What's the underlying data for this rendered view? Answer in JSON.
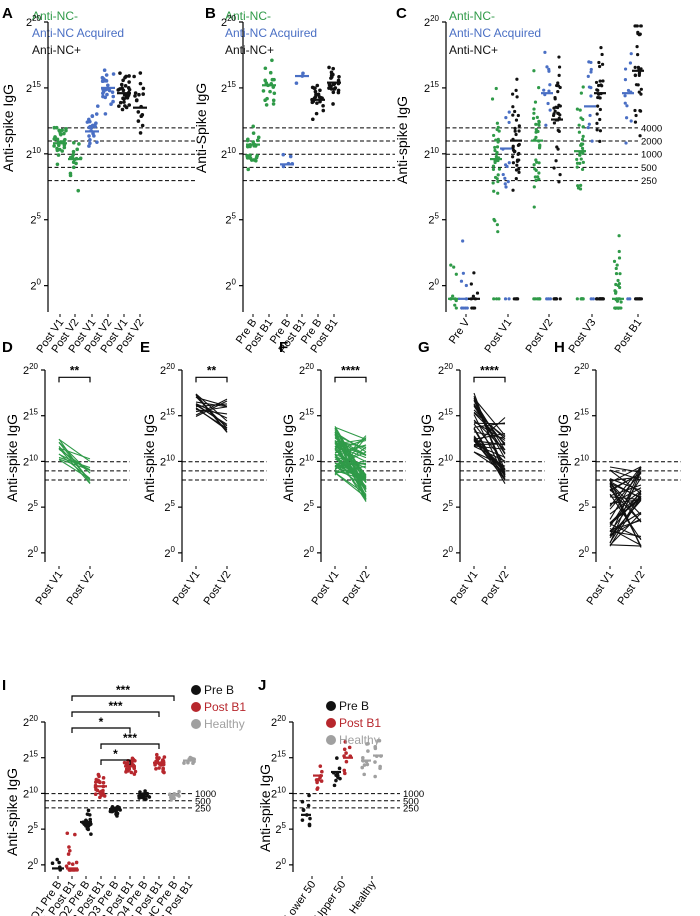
{
  "colors": {
    "green": "#2f9a48",
    "blue": "#4a6fc4",
    "black": "#111111",
    "red": "#b7272d",
    "grey": "#a0a0a0"
  },
  "chart_data": [
    {
      "id": "A",
      "type": "scatter",
      "ylabel": "Anti-spike IgG",
      "yscale": "log2",
      "ylim": [
        -2,
        20
      ],
      "yticks": [
        0,
        5,
        10,
        15,
        20
      ],
      "tick_base": "2",
      "legend": [
        {
          "label": "Anti-NC-",
          "color": "green"
        },
        {
          "label": "Anti-NC Acquired",
          "color": "blue"
        },
        {
          "label": "Anti-NC+",
          "color": "black"
        }
      ],
      "categories": [
        "Post V1",
        "Post V2",
        "Post V1",
        "Post V2",
        "Post V1",
        "Post V2"
      ],
      "series_colors": [
        "green",
        "green",
        "blue",
        "blue",
        "black",
        "black"
      ],
      "medians": [
        10.8,
        9.6,
        11.7,
        15.0,
        14.6,
        13.5
      ],
      "counts": [
        28,
        16,
        22,
        26,
        32,
        17
      ],
      "spread": [
        1.4,
        1.3,
        1.2,
        1.2,
        1.2,
        1.6
      ],
      "ref_lines_log2": [
        11.97,
        10.97,
        9.97,
        8.97,
        7.97
      ]
    },
    {
      "id": "B",
      "type": "scatter",
      "ylabel": "Anti-Spike IgG",
      "yscale": "log2",
      "ylim": [
        -2,
        20
      ],
      "yticks": [
        0,
        5,
        10,
        15,
        20
      ],
      "tick_base": "2",
      "legend": [
        {
          "label": "Anti-NC-",
          "color": "green"
        },
        {
          "label": "Anti-NC Acquired",
          "color": "blue"
        },
        {
          "label": "Anti-NC+",
          "color": "black"
        }
      ],
      "categories": [
        "Pre B",
        "Post B1",
        "Pre B",
        "Post B1",
        "Pre B",
        "Post B1"
      ],
      "series_colors": [
        "green",
        "green",
        "blue",
        "blue",
        "black",
        "black"
      ],
      "medians": [
        10.7,
        15.2,
        9.2,
        15.9,
        14.1,
        15.4
      ],
      "counts": [
        24,
        18,
        5,
        3,
        24,
        24
      ],
      "spread": [
        1.2,
        1.1,
        0.8,
        0.8,
        1.2,
        0.8
      ],
      "ref_lines_log2": [
        11.97,
        10.97,
        9.97,
        8.97,
        7.97
      ]
    },
    {
      "id": "C",
      "type": "scatter",
      "ylabel": "Anti-spike IgG",
      "yscale": "log2",
      "ylim": [
        -2,
        20
      ],
      "yticks": [
        0,
        5,
        10,
        15,
        20
      ],
      "tick_base": "2",
      "legend": [
        {
          "label": "Anti-NC-",
          "color": "green"
        },
        {
          "label": "Anti-NC Acquired",
          "color": "blue"
        },
        {
          "label": "Anti-NC+",
          "color": "black"
        }
      ],
      "categories": [
        "Pre V",
        "Post V1",
        "Post V2",
        "Post V3",
        "Post B1"
      ],
      "series_colors": [
        "green",
        "blue",
        "black"
      ],
      "medians": [
        [
          -1.0,
          -1.0,
          -1.0
        ],
        [
          9.6,
          10.4,
          11.0
        ],
        [
          11.0,
          14.6,
          12.6
        ],
        [
          10.2,
          13.6,
          14.6
        ],
        [
          -1.0,
          14.6,
          16.3
        ]
      ],
      "ref_lines": [
        {
          "log2": 11.97,
          "label": "4000"
        },
        {
          "log2": 10.97,
          "label": "2000"
        },
        {
          "log2": 9.97,
          "label": "1000"
        },
        {
          "log2": 8.97,
          "label": "500"
        },
        {
          "log2": 7.97,
          "label": "250"
        }
      ]
    },
    {
      "id": "D",
      "type": "paired-line",
      "ylabel": "Anti-spike IgG",
      "yscale": "log2",
      "ylim": [
        -1,
        20
      ],
      "yticks": [
        0,
        5,
        10,
        15,
        20
      ],
      "tick_base": "2",
      "categories": [
        "Post V1",
        "Post V2"
      ],
      "color": "green",
      "significance": "**",
      "pairs": 14,
      "pre_range": [
        9.5,
        12.5
      ],
      "post_range": [
        7.5,
        10.5
      ],
      "ref_lines_log2": [
        9.97,
        8.97,
        7.97
      ]
    },
    {
      "id": "E",
      "type": "paired-line",
      "ylabel": "Anti-spike IgG",
      "yscale": "log2",
      "ylim": [
        -1,
        20
      ],
      "yticks": [
        0,
        5,
        10,
        15,
        20
      ],
      "tick_base": "2",
      "categories": [
        "Post V1",
        "Post V2"
      ],
      "color": "black",
      "significance": "**",
      "pairs": 16,
      "pre_range": [
        14.5,
        17.5
      ],
      "post_range": [
        13.0,
        17.0
      ],
      "ref_lines_log2": [
        9.97,
        8.97,
        7.97
      ]
    },
    {
      "id": "F",
      "type": "paired-line",
      "ylabel": "Anti-spike IgG",
      "yscale": "log2",
      "ylim": [
        -1,
        20
      ],
      "yticks": [
        0,
        5,
        10,
        15,
        20
      ],
      "tick_base": "2",
      "categories": [
        "Post V1",
        "Post V2"
      ],
      "color": "green",
      "significance": "****",
      "pairs": 60,
      "pre_range": [
        8.5,
        14.0
      ],
      "post_range": [
        5.5,
        13.0
      ],
      "ref_lines_log2": [
        9.97,
        8.97,
        7.97
      ]
    },
    {
      "id": "G",
      "type": "paired-line",
      "ylabel": "Anti-spike IgG",
      "yscale": "log2",
      "ylim": [
        -1,
        20
      ],
      "yticks": [
        0,
        5,
        10,
        15,
        20
      ],
      "tick_base": "2",
      "categories": [
        "Post V1",
        "Post V2"
      ],
      "color": "black",
      "significance": "****",
      "pairs": 40,
      "pre_range": [
        11.0,
        17.5
      ],
      "post_range": [
        7.5,
        15.0
      ],
      "ref_lines_log2": [
        9.97,
        8.97,
        7.97
      ]
    },
    {
      "id": "H",
      "type": "paired-line",
      "ylabel": "Anti-spike IgG",
      "yscale": "log2",
      "ylim": [
        -1,
        20
      ],
      "yticks": [
        0,
        5,
        10,
        15,
        20
      ],
      "tick_base": "2",
      "categories": [
        "Post V1",
        "Post V2"
      ],
      "color": "black",
      "significance": "",
      "pairs": 45,
      "pre_range": [
        0.5,
        9.5
      ],
      "post_range": [
        0.5,
        9.5
      ],
      "ref_lines_log2": [
        9.97,
        8.97,
        7.97
      ]
    },
    {
      "id": "I",
      "type": "scatter",
      "ylabel": "Anti-spike IgG",
      "yscale": "log2",
      "ylim": [
        -1,
        20
      ],
      "yticks": [
        0,
        5,
        10,
        15,
        20
      ],
      "tick_base": "2",
      "legend": [
        {
          "label": "Pre B",
          "color": "black"
        },
        {
          "label": "Post B1",
          "color": "red"
        },
        {
          "label": "Healthy",
          "color": "grey"
        }
      ],
      "categories": [
        "Q1 Pre B",
        "Q1 Post B1",
        "Q2 Pre B",
        "Q2 Post B1",
        "Q3 Pre B",
        "Q3 Post B1",
        "Q4 Pre B",
        "Q4 Post B1",
        "HC Pre B",
        "HC Post B1"
      ],
      "series_colors": [
        "black",
        "red",
        "black",
        "red",
        "black",
        "red",
        "black",
        "red",
        "grey",
        "grey"
      ],
      "medians": [
        -0.5,
        -0.5,
        6.0,
        11.0,
        7.8,
        13.8,
        9.6,
        14.3,
        9.8,
        14.6
      ],
      "counts": [
        5,
        22,
        20,
        26,
        18,
        26,
        15,
        26,
        10,
        10
      ],
      "spread": [
        1.0,
        4.5,
        1.2,
        1.5,
        0.8,
        1.1,
        0.8,
        1.3,
        0.5,
        0.8
      ],
      "significance_brackets": [
        {
          "from": 1,
          "to": 8,
          "label": "***"
        },
        {
          "from": 1,
          "to": 7,
          "label": "***"
        },
        {
          "from": 1,
          "to": 5,
          "label": "*"
        },
        {
          "from": 3,
          "to": 7,
          "label": "***"
        },
        {
          "from": 3,
          "to": 5,
          "label": "*"
        }
      ],
      "ref_lines": [
        {
          "log2": 9.97,
          "label": "1000"
        },
        {
          "log2": 8.97,
          "label": "500"
        },
        {
          "log2": 7.97,
          "label": "250"
        }
      ]
    },
    {
      "id": "J",
      "type": "scatter",
      "ylabel": "Anti-spike IgG",
      "yscale": "log2",
      "ylim": [
        -1,
        20
      ],
      "yticks": [
        0,
        5,
        10,
        15,
        20
      ],
      "tick_base": "2",
      "legend": [
        {
          "label": "Pre B",
          "color": "black"
        },
        {
          "label": "Post B1",
          "color": "red"
        },
        {
          "label": "Healthy",
          "color": "grey"
        }
      ],
      "categories": [
        "Lower 50",
        "Upper 50",
        "Healthy"
      ],
      "series_colors": [
        "black",
        "red",
        "grey"
      ],
      "medians": [
        [
          7.0,
          12.5
        ],
        [
          13.0,
          15.0
        ],
        [
          14.6,
          15.3
        ]
      ],
      "ref_lines": [
        {
          "log2": 9.97,
          "label": "1000"
        },
        {
          "log2": 8.97,
          "label": "500"
        },
        {
          "log2": 7.97,
          "label": "250"
        }
      ]
    }
  ]
}
